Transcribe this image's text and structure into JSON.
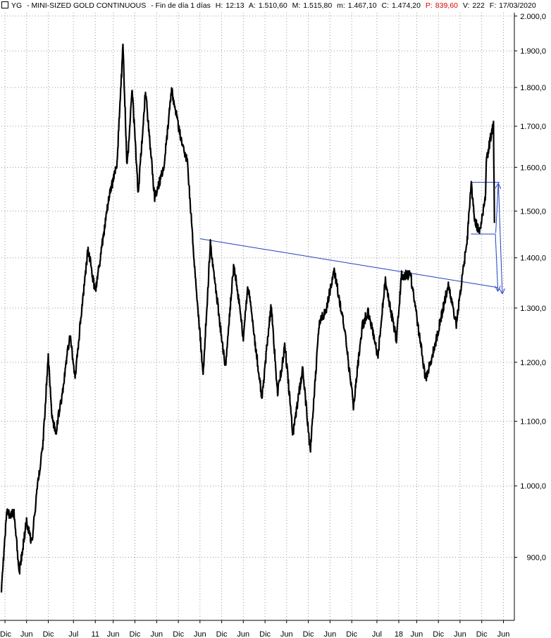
{
  "header": {
    "symbol": "YG",
    "name": "MINI-SIZED GOLD CONTINUOUS",
    "period": "Fin de día 1 días",
    "hora_label": "H:",
    "hora": "12:13",
    "open_label": "A:",
    "open": "1.510,60",
    "high_label": "M:",
    "high": "1.515,80",
    "low_label": "m:",
    "low": "1.467,10",
    "close_label": "C:",
    "close": "1.474,20",
    "p_label": "P:",
    "p": "839,60",
    "vol_label": "V:",
    "vol": "222",
    "date_label": "F:",
    "date": "17/03/2020"
  },
  "colors": {
    "price": "#000000",
    "annotation": "#1f3fbf",
    "grid": "#9a9a9a",
    "accent_red": "#e00000"
  },
  "chart_data": {
    "type": "line",
    "title": "",
    "xlabel": "",
    "ylabel": "",
    "y_scale": "log",
    "ylim": [
      820,
      2010
    ],
    "grid": true,
    "yticks": [
      {
        "value": 900,
        "label": "900,0"
      },
      {
        "value": 1000,
        "label": "1.000,0"
      },
      {
        "value": 1100,
        "label": "1.100,0"
      },
      {
        "value": 1200,
        "label": "1.200,0"
      },
      {
        "value": 1300,
        "label": "1.300,0"
      },
      {
        "value": 1400,
        "label": "1.400,0"
      },
      {
        "value": 1500,
        "label": "1.500,0"
      },
      {
        "value": 1600,
        "label": "1.600,0"
      },
      {
        "value": 1700,
        "label": "1.700,0"
      },
      {
        "value": 1800,
        "label": "1.800,0"
      },
      {
        "value": 1900,
        "label": "1.900,0"
      },
      {
        "value": 2000,
        "label": "2.000,0"
      }
    ],
    "xticks": [
      {
        "date": "2008-12-01",
        "label": "Dic"
      },
      {
        "date": "2009-06-01",
        "label": "Jun"
      },
      {
        "date": "2009-12-01",
        "label": "Dic"
      },
      {
        "date": "2010-07-01",
        "label": "Jul"
      },
      {
        "date": "2011-01-01",
        "label": "11"
      },
      {
        "date": "2011-06-01",
        "label": "Jun"
      },
      {
        "date": "2011-12-01",
        "label": "Dic"
      },
      {
        "date": "2012-06-01",
        "label": "Jun"
      },
      {
        "date": "2012-12-01",
        "label": "Dic"
      },
      {
        "date": "2013-06-01",
        "label": "Jun"
      },
      {
        "date": "2013-12-01",
        "label": "Dic"
      },
      {
        "date": "2014-06-01",
        "label": "Jun"
      },
      {
        "date": "2014-12-01",
        "label": "Dic"
      },
      {
        "date": "2015-06-01",
        "label": "Jun"
      },
      {
        "date": "2015-12-01",
        "label": "Dic"
      },
      {
        "date": "2016-06-01",
        "label": "Jun"
      },
      {
        "date": "2016-12-01",
        "label": "Dic"
      },
      {
        "date": "2017-07-01",
        "label": "Jul"
      },
      {
        "date": "2018-01-01",
        "label": "18"
      },
      {
        "date": "2018-06-01",
        "label": "Jun"
      },
      {
        "date": "2018-12-01",
        "label": "Dic"
      },
      {
        "date": "2019-06-01",
        "label": "Jun"
      },
      {
        "date": "2019-12-01",
        "label": "Dic"
      },
      {
        "date": "2020-06-01",
        "label": "Jun"
      }
    ],
    "xlim": [
      "2008-11-01",
      "2020-09-01"
    ],
    "series": [
      {
        "points": [
          [
            "2008-11-01",
            860
          ],
          [
            "2008-12-15",
            960
          ],
          [
            "2009-02-15",
            960
          ],
          [
            "2009-04-01",
            880
          ],
          [
            "2009-06-01",
            950
          ],
          [
            "2009-07-15",
            920
          ],
          [
            "2009-09-01",
            1000
          ],
          [
            "2009-10-15",
            1060
          ],
          [
            "2009-12-01",
            1210
          ],
          [
            "2010-01-01",
            1110
          ],
          [
            "2010-02-01",
            1080
          ],
          [
            "2010-04-01",
            1150
          ],
          [
            "2010-06-01",
            1250
          ],
          [
            "2010-07-15",
            1170
          ],
          [
            "2010-09-01",
            1280
          ],
          [
            "2010-11-01",
            1420
          ],
          [
            "2011-01-01",
            1330
          ],
          [
            "2011-03-01",
            1430
          ],
          [
            "2011-05-01",
            1540
          ],
          [
            "2011-07-01",
            1600
          ],
          [
            "2011-08-22",
            1910
          ],
          [
            "2011-09-26",
            1600
          ],
          [
            "2011-11-08",
            1790
          ],
          [
            "2011-12-29",
            1540
          ],
          [
            "2012-02-28",
            1790
          ],
          [
            "2012-05-15",
            1530
          ],
          [
            "2012-08-01",
            1600
          ],
          [
            "2012-10-05",
            1795
          ],
          [
            "2012-12-01",
            1700
          ],
          [
            "2013-02-15",
            1610
          ],
          [
            "2013-04-15",
            1390
          ],
          [
            "2013-06-28",
            1180
          ],
          [
            "2013-08-28",
            1430
          ],
          [
            "2013-12-31",
            1190
          ],
          [
            "2014-03-14",
            1390
          ],
          [
            "2014-06-01",
            1245
          ],
          [
            "2014-07-10",
            1345
          ],
          [
            "2014-11-05",
            1140
          ],
          [
            "2015-01-22",
            1305
          ],
          [
            "2015-03-17",
            1145
          ],
          [
            "2015-05-18",
            1230
          ],
          [
            "2015-07-24",
            1080
          ],
          [
            "2015-10-15",
            1190
          ],
          [
            "2015-12-17",
            1050
          ],
          [
            "2016-03-01",
            1270
          ],
          [
            "2016-05-01",
            1300
          ],
          [
            "2016-07-06",
            1375
          ],
          [
            "2016-10-01",
            1260
          ],
          [
            "2016-12-15",
            1125
          ],
          [
            "2017-02-27",
            1265
          ],
          [
            "2017-04-17",
            1295
          ],
          [
            "2017-07-10",
            1210
          ],
          [
            "2017-09-08",
            1355
          ],
          [
            "2017-12-12",
            1240
          ],
          [
            "2018-01-25",
            1365
          ],
          [
            "2018-04-11",
            1365
          ],
          [
            "2018-08-16",
            1170
          ],
          [
            "2018-11-01",
            1230
          ],
          [
            "2019-01-01",
            1290
          ],
          [
            "2019-02-20",
            1345
          ],
          [
            "2019-05-01",
            1270
          ],
          [
            "2019-06-15",
            1350
          ],
          [
            "2019-08-01",
            1440
          ],
          [
            "2019-09-04",
            1565
          ],
          [
            "2019-10-01",
            1480
          ],
          [
            "2019-11-12",
            1455
          ],
          [
            "2019-12-31",
            1525
          ],
          [
            "2020-01-08",
            1610
          ],
          [
            "2020-02-24",
            1690
          ],
          [
            "2020-03-09",
            1700
          ],
          [
            "2020-03-17",
            1474
          ]
        ]
      }
    ],
    "annotations": [
      {
        "type": "trendline",
        "from": [
          "2013-06-01",
          1440
        ],
        "to": [
          "2020-04-15",
          1340
        ]
      },
      {
        "type": "hline",
        "y": 1565,
        "from": "2019-09-01",
        "to": "2020-05-01"
      },
      {
        "type": "hline",
        "y": 1450,
        "from": "2019-09-01",
        "to": "2020-03-25"
      },
      {
        "type": "arrow",
        "from": [
          "2020-03-25",
          1450
        ],
        "to": [
          "2020-04-15",
          1335
        ]
      },
      {
        "type": "arrow",
        "from": [
          "2020-03-28",
          1452
        ],
        "to": [
          "2020-04-18",
          1560
        ]
      },
      {
        "type": "arrow",
        "from": [
          "2020-04-20",
          1560
        ],
        "to": [
          "2020-05-22",
          1330
        ]
      }
    ]
  }
}
